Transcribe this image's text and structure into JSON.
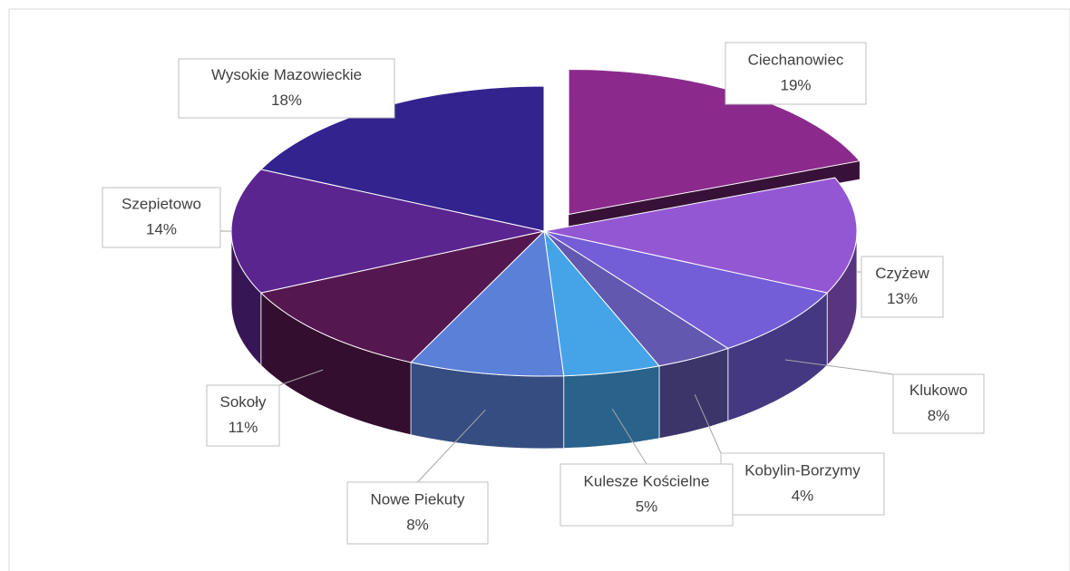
{
  "chart_data": {
    "type": "pie3d",
    "categories": [
      "Ciechanowiec",
      "Czyżew",
      "Klukowo",
      "Kobylin-Borzymy",
      "Kulesze Kościelne",
      "Nowe Piekuty",
      "Sokoły",
      "Szepietowo",
      "Wysokie Mazowieckie"
    ],
    "values": [
      19,
      13,
      8,
      4,
      5,
      8,
      11,
      14,
      18
    ],
    "value_labels": [
      "19%",
      "13%",
      "8%",
      "4%",
      "5%",
      "8%",
      "11%",
      "14%",
      "18%"
    ],
    "colors": [
      "#8b2a8c",
      "#9457d4",
      "#735ed8",
      "#6358b0",
      "#45a3e8",
      "#5a80d8",
      "#55174f",
      "#5b2590",
      "#33238f"
    ]
  }
}
